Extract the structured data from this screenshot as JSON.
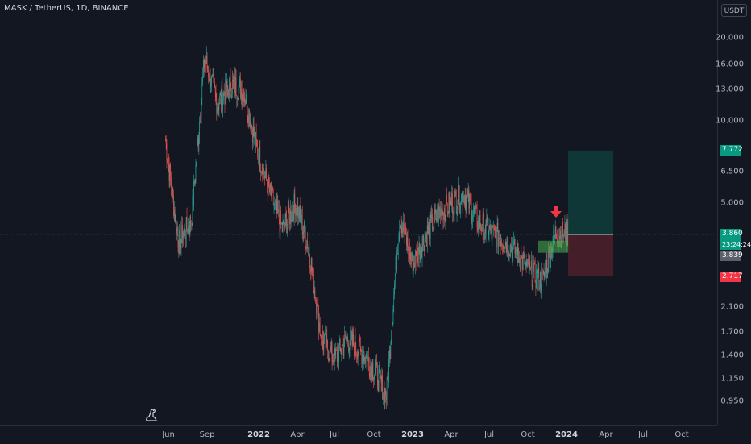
{
  "header": {
    "symbol_label": "MASK / TetherUS, 1D, BINANCE",
    "currency": "USDT"
  },
  "colors": {
    "up": "#26a69a",
    "down": "#ef5350",
    "background": "#131722",
    "profit": "#0f3b3a",
    "loss": "#4a1f2a",
    "grid": "#2a2e39"
  },
  "price_axis": {
    "scale": "log",
    "range": [
      0.8,
      25
    ],
    "ticks": [
      "20.000",
      "16.000",
      "13.000",
      "10.000",
      "6.500",
      "5.000",
      "2.100",
      "1.700",
      "1.400",
      "1.150",
      "0.950"
    ]
  },
  "time_axis": {
    "labels": [
      {
        "text": "Jun",
        "bold": false
      },
      {
        "text": "Sep",
        "bold": false
      },
      {
        "text": "2022",
        "bold": true
      },
      {
        "text": "Apr",
        "bold": false
      },
      {
        "text": "Jul",
        "bold": false
      },
      {
        "text": "Oct",
        "bold": false
      },
      {
        "text": "2023",
        "bold": true
      },
      {
        "text": "Apr",
        "bold": false
      },
      {
        "text": "Jul",
        "bold": false
      },
      {
        "text": "Oct",
        "bold": false
      },
      {
        "text": "2024",
        "bold": true
      },
      {
        "text": "Apr",
        "bold": false
      },
      {
        "text": "Jul",
        "bold": false
      },
      {
        "text": "Oct",
        "bold": false
      }
    ]
  },
  "price_tags": {
    "target": "7.772",
    "current": "3.860",
    "countdown": "23:24:24",
    "entry": "3.839",
    "stop": "2.717"
  },
  "chart_data": {
    "type": "candlestick",
    "scale": "log",
    "x": [
      "2021-05",
      "2021-06",
      "2021-07",
      "2021-08",
      "2021-09",
      "2021-10",
      "2021-11",
      "2021-12",
      "2022-01",
      "2022-02",
      "2022-03",
      "2022-04",
      "2022-05",
      "2022-06",
      "2022-07",
      "2022-08",
      "2022-09",
      "2022-10",
      "2022-11",
      "2022-12",
      "2023-01",
      "2023-02",
      "2023-03",
      "2023-04",
      "2023-05",
      "2023-06",
      "2023-07",
      "2023-08",
      "2023-09",
      "2023-10",
      "2023-11",
      "2023-12"
    ],
    "close": [
      8.5,
      3.6,
      4.3,
      17.0,
      11.5,
      13.5,
      13.0,
      8.0,
      5.5,
      4.0,
      5.0,
      3.5,
      1.6,
      1.35,
      1.6,
      1.45,
      1.25,
      1.0,
      4.5,
      3.0,
      3.8,
      4.6,
      5.0,
      5.4,
      4.3,
      3.9,
      3.7,
      3.3,
      2.8,
      2.6,
      3.9,
      3.86
    ],
    "position": {
      "type": "long",
      "entry": 3.839,
      "target": 7.772,
      "stop": 2.717
    },
    "demand_zone": [
      3.3,
      3.65
    ]
  }
}
